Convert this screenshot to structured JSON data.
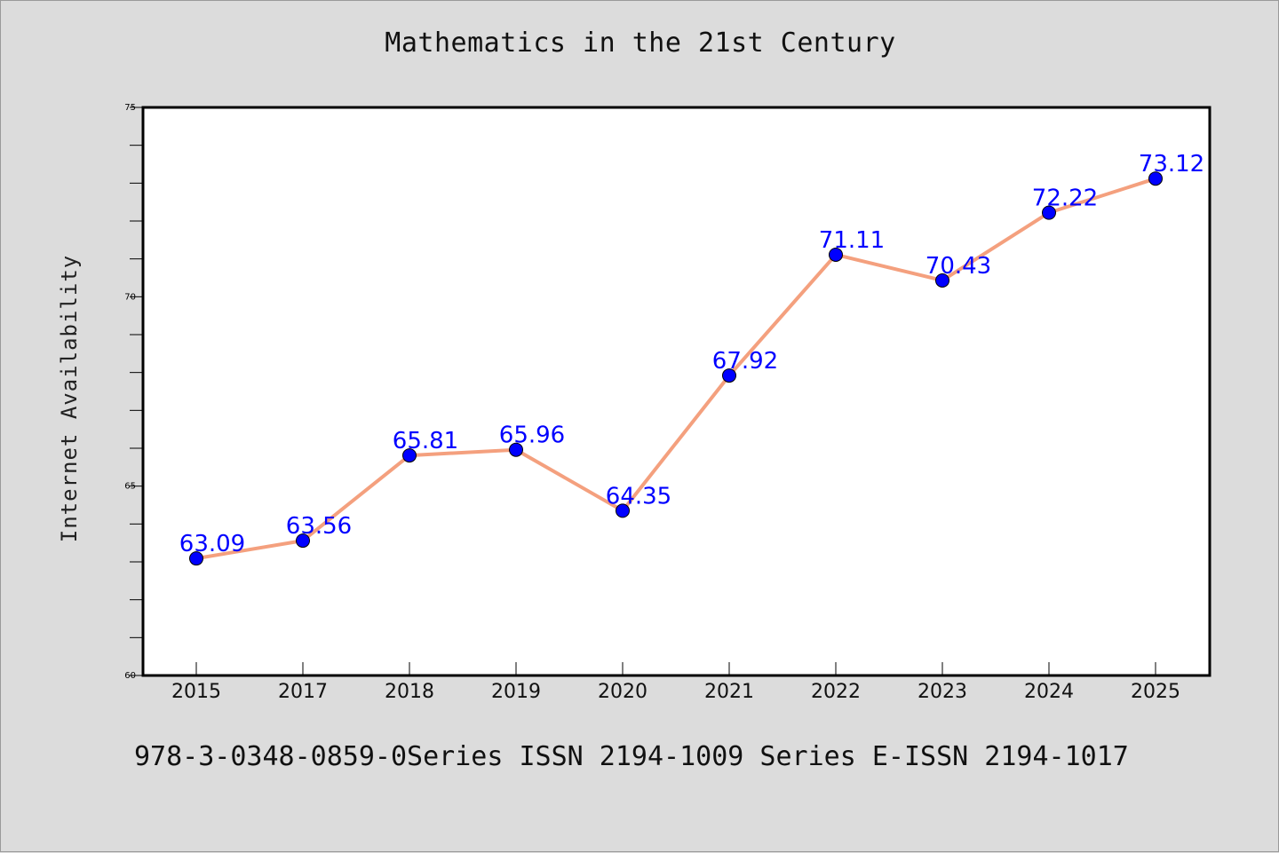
{
  "title": "Mathematics in the 21st Century",
  "footer": "978-3-0348-0859-0Series ISSN 2194-1009 Series E-ISSN 2194-1017",
  "chart_data": {
    "type": "line",
    "categories": [
      "2015",
      "2017",
      "2018",
      "2019",
      "2020",
      "2021",
      "2022",
      "2023",
      "2024",
      "2025"
    ],
    "series": [
      {
        "values": [
          63.09,
          63.56,
          65.81,
          65.96,
          64.35,
          67.92,
          71.11,
          70.43,
          72.22,
          73.12
        ],
        "labels": [
          "63.09",
          "63.56",
          "65.81",
          "65.96",
          "64.35",
          "67.92",
          "71.11",
          "70.43",
          "72.22",
          "73.12"
        ],
        "line_color": "#f4a07e",
        "marker_color": "#0000ff",
        "label_color": "#0000ff"
      }
    ],
    "ylabel": "Internet Availability",
    "xlabel": "",
    "ylim": [
      60,
      75
    ],
    "y_ticks": [
      "60",
      "65",
      "70",
      "75"
    ],
    "y_minor_step": 1,
    "grid": false,
    "plot_background": "#ffffff"
  }
}
